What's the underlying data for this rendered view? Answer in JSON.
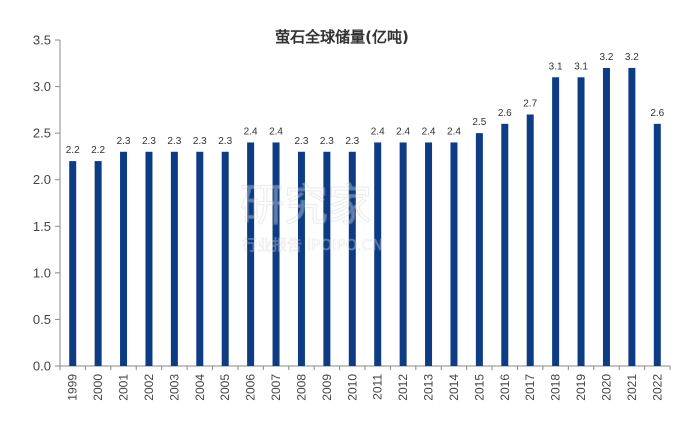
{
  "chart_data": {
    "type": "bar",
    "title": "萤石全球储量(亿吨)",
    "categories": [
      "1999",
      "2000",
      "2001",
      "2002",
      "2003",
      "2004",
      "2005",
      "2006",
      "2007",
      "2008",
      "2009",
      "2010",
      "2011",
      "2012",
      "2013",
      "2014",
      "2015",
      "2016",
      "2017",
      "2018",
      "2019",
      "2020",
      "2021",
      "2022"
    ],
    "values": [
      2.2,
      2.2,
      2.3,
      2.3,
      2.3,
      2.3,
      2.3,
      2.4,
      2.4,
      2.3,
      2.3,
      2.3,
      2.4,
      2.4,
      2.4,
      2.4,
      2.5,
      2.6,
      2.7,
      3.1,
      3.1,
      3.2,
      3.2,
      2.6
    ],
    "data_labels": [
      "2.2",
      "2.2",
      "2.3",
      "2.3",
      "2.3",
      "2.3",
      "2.3",
      "2.4",
      "2.4",
      "2.3",
      "2.3",
      "2.3",
      "2.4",
      "2.4",
      "2.4",
      "2.4",
      "2.5",
      "2.6",
      "2.7",
      "3.1",
      "3.1",
      "3.2",
      "3.2",
      "2.6"
    ],
    "ylim": [
      0,
      3.5
    ],
    "yticks": [
      "0.0",
      "0.5",
      "1.0",
      "1.5",
      "2.0",
      "2.5",
      "3.0",
      "3.5"
    ],
    "xlabel": "",
    "ylabel": "",
    "grid": false,
    "legend": "none",
    "bar_color": "#0d3c85"
  },
  "watermark": {
    "main_text": "研究家",
    "sub_text": "行业报告 IPOIPO.CN"
  }
}
